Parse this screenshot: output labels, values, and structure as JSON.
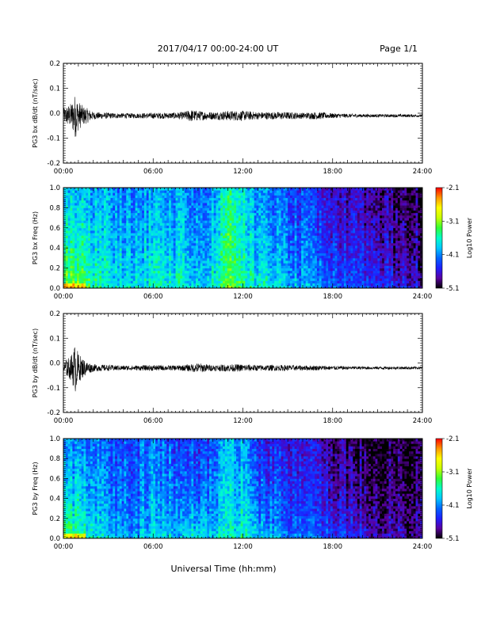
{
  "header": {
    "title": "2017/04/17  00:00-24:00 UT",
    "page": "Page 1/1"
  },
  "colorbar": {
    "label": "Log10 Power",
    "ticks": [
      "-2.1",
      "-3.1",
      "-4.1",
      "-5.1"
    ],
    "range": [
      -5.1,
      -2.1
    ],
    "colors": [
      "#000000",
      "#5a00a0",
      "#1e1eff",
      "#0064ff",
      "#00c8ff",
      "#00ffc8",
      "#32ff32",
      "#c8ff00",
      "#ffff00",
      "#ff9600",
      "#ff0000"
    ]
  },
  "chart_data": [
    {
      "type": "line",
      "ylabel": "PG3 bx dB/dt (nT/sec)",
      "xlim": [
        0,
        24
      ],
      "ylim": [
        -0.2,
        0.2
      ],
      "x_ticks": [
        "00:00",
        "06:00",
        "12:00",
        "18:00",
        "24:00"
      ],
      "y_ticks": [
        "0.2",
        "0.1",
        "0.0",
        "-0.1",
        "-0.2"
      ],
      "baseline": -0.01,
      "envelope": {
        "hours": [
          0,
          0.5,
          0.8,
          1.0,
          1.3,
          1.6,
          2.0,
          3.0,
          4.0,
          5.0,
          6.0,
          7.0,
          8.0,
          8.5,
          9.0,
          10.0,
          11.0,
          12.0,
          13.0,
          14.0,
          15.0,
          16.0,
          17.0,
          18.0,
          19.0,
          20.0,
          21.0,
          22.0,
          23.0,
          24.0
        ],
        "half_amplitude": [
          0.03,
          0.05,
          0.09,
          0.06,
          0.04,
          0.03,
          0.015,
          0.012,
          0.01,
          0.01,
          0.012,
          0.012,
          0.015,
          0.025,
          0.02,
          0.015,
          0.02,
          0.02,
          0.015,
          0.015,
          0.015,
          0.012,
          0.015,
          0.01,
          0.008,
          0.007,
          0.006,
          0.006,
          0.006,
          0.005
        ]
      }
    },
    {
      "type": "heatmap",
      "ylabel": "PG3 bx Freq (Hz)",
      "xlim": [
        0,
        24
      ],
      "ylim": [
        0,
        1.0
      ],
      "x_ticks": [
        "00:00",
        "06:00",
        "12:00",
        "18:00",
        "24:00"
      ],
      "y_ticks": [
        "1.0",
        "0.8",
        "0.6",
        "0.4",
        "0.2",
        "0.0"
      ],
      "zlim": [
        -5.1,
        -2.1
      ],
      "column_hours": [
        0,
        1,
        2,
        3,
        4,
        5,
        6,
        7,
        8,
        9,
        10,
        11,
        12,
        13,
        14,
        15,
        16,
        17,
        18,
        19,
        20,
        21,
        22,
        23,
        24
      ],
      "log_power_low_freq": [
        -3.0,
        -3.1,
        -3.4,
        -3.6,
        -3.6,
        -3.7,
        -3.6,
        -3.6,
        -3.6,
        -3.7,
        -3.6,
        -3.3,
        -3.3,
        -3.6,
        -3.7,
        -3.8,
        -3.9,
        -4.0,
        -4.1,
        -4.2,
        -4.3,
        -4.4,
        -4.5,
        -4.5,
        -4.6
      ],
      "log_power_high_freq": [
        -3.9,
        -3.9,
        -4.0,
        -4.0,
        -4.1,
        -4.1,
        -4.0,
        -4.1,
        -4.0,
        -4.2,
        -4.0,
        -3.6,
        -3.7,
        -4.1,
        -4.2,
        -4.3,
        -4.4,
        -4.5,
        -4.6,
        -4.7,
        -4.8,
        -4.9,
        -4.9,
        -5.0,
        -5.0
      ]
    },
    {
      "type": "line",
      "ylabel": "PG3 by dB/dt (nT/sec)",
      "xlim": [
        0,
        24
      ],
      "ylim": [
        -0.2,
        0.2
      ],
      "x_ticks": [
        "00:00",
        "06:00",
        "12:00",
        "18:00",
        "24:00"
      ],
      "y_ticks": [
        "0.2",
        "0.1",
        "0.0",
        "-0.1",
        "-0.2"
      ],
      "baseline": -0.02,
      "envelope": {
        "hours": [
          0,
          0.5,
          0.8,
          1.0,
          1.3,
          1.6,
          2.0,
          3.0,
          4.0,
          5.0,
          6.0,
          7.0,
          8.0,
          8.5,
          9.0,
          10.0,
          11.0,
          12.0,
          13.0,
          14.0,
          15.0,
          16.0,
          17.0,
          18.0,
          19.0,
          20.0,
          21.0,
          22.0,
          23.0,
          24.0
        ],
        "half_amplitude": [
          0.025,
          0.05,
          0.1,
          0.06,
          0.04,
          0.025,
          0.015,
          0.012,
          0.01,
          0.01,
          0.012,
          0.01,
          0.012,
          0.015,
          0.02,
          0.012,
          0.015,
          0.015,
          0.012,
          0.012,
          0.012,
          0.01,
          0.01,
          0.008,
          0.007,
          0.006,
          0.006,
          0.006,
          0.006,
          0.005
        ]
      }
    },
    {
      "type": "heatmap",
      "ylabel": "PG3 by Freq (Hz)",
      "xlim": [
        0,
        24
      ],
      "ylim": [
        0,
        1.0
      ],
      "x_ticks": [
        "00:00",
        "06:00",
        "12:00",
        "18:00",
        "24:00"
      ],
      "y_ticks": [
        "1.0",
        "0.8",
        "0.6",
        "0.4",
        "0.2",
        "0.0"
      ],
      "zlim": [
        -5.1,
        -2.1
      ],
      "xlabel": "Universal Time (hh:mm)",
      "column_hours": [
        0,
        1,
        2,
        3,
        4,
        5,
        6,
        7,
        8,
        9,
        10,
        11,
        12,
        13,
        14,
        15,
        16,
        17,
        18,
        19,
        20,
        21,
        22,
        23,
        24
      ],
      "log_power_low_freq": [
        -3.2,
        -3.3,
        -3.6,
        -3.8,
        -3.8,
        -3.9,
        -3.7,
        -3.8,
        -3.7,
        -3.6,
        -3.8,
        -3.6,
        -3.5,
        -3.8,
        -3.9,
        -4.0,
        -4.1,
        -4.2,
        -4.3,
        -4.4,
        -4.5,
        -4.6,
        -4.6,
        -4.7,
        -4.8
      ],
      "log_power_high_freq": [
        -4.1,
        -4.1,
        -4.2,
        -4.3,
        -4.3,
        -4.3,
        -4.1,
        -4.3,
        -4.3,
        -4.4,
        -4.3,
        -3.9,
        -4.0,
        -4.4,
        -4.5,
        -4.5,
        -4.6,
        -4.7,
        -4.8,
        -4.9,
        -5.0,
        -5.0,
        -5.0,
        -5.0,
        -5.1
      ]
    }
  ]
}
